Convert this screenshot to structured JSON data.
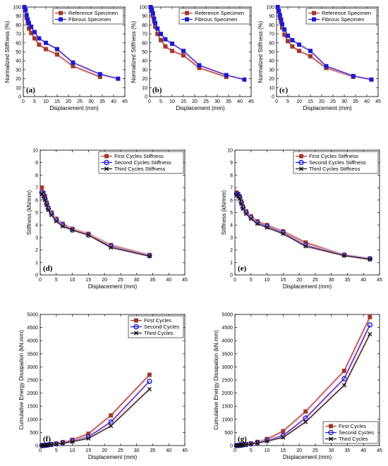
{
  "colors": {
    "reference": "#a0392a",
    "fibrous": "#1a1ad6",
    "first": "#a0392a",
    "second": "#1a1ad6",
    "third": "#111111",
    "halo": "#f5b8c4"
  },
  "chart_data": [
    {
      "id": "a",
      "type": "line",
      "panel_label": "(a)",
      "xlabel": "Displacement (mm)",
      "ylabel": "Normalized Stiffness (%)",
      "xlim": [
        0,
        45
      ],
      "ylim": [
        0,
        100
      ],
      "xticks": [
        0,
        5,
        10,
        15,
        20,
        25,
        30,
        35,
        40,
        45
      ],
      "yticks": [
        0,
        10,
        20,
        30,
        40,
        50,
        60,
        70,
        80,
        90,
        100
      ],
      "legend_position": "top-right",
      "series": [
        {
          "name": "Reference Specimen",
          "color_key": "reference",
          "marker": "square",
          "x": [
            0.5,
            1,
            1.5,
            2,
            2.5,
            3.5,
            5,
            7,
            10,
            15,
            22,
            34
          ],
          "y": [
            100,
            96,
            88,
            82,
            76,
            71,
            65,
            58,
            53,
            47,
            34,
            22
          ]
        },
        {
          "name": "Fibrous Specimen",
          "color_key": "fibrous",
          "marker": "square",
          "x": [
            0.5,
            1,
            1.5,
            2,
            2.5,
            3.5,
            5,
            7,
            10,
            15,
            22,
            34,
            42
          ],
          "y": [
            100,
            97,
            91,
            86,
            82,
            78,
            72,
            65,
            60,
            53,
            38,
            25,
            20
          ]
        }
      ]
    },
    {
      "id": "b",
      "type": "line",
      "panel_label": "(b)",
      "xlabel": "Displacement (mm)",
      "ylabel": "Normalized Stiffness (%)",
      "xlim": [
        0,
        45
      ],
      "ylim": [
        0,
        100
      ],
      "xticks": [
        0,
        5,
        10,
        15,
        20,
        25,
        30,
        35,
        40,
        45
      ],
      "yticks": [
        0,
        10,
        20,
        30,
        40,
        50,
        60,
        70,
        80,
        90,
        100
      ],
      "legend_position": "top-right",
      "series": [
        {
          "name": "Reference Specimen",
          "color_key": "reference",
          "marker": "square",
          "x": [
            0.5,
            1,
            1.5,
            2,
            2.5,
            3.5,
            5,
            7,
            10,
            15,
            22,
            34
          ],
          "y": [
            100,
            96,
            90,
            84,
            78,
            70,
            63,
            56,
            51,
            46,
            32,
            22
          ]
        },
        {
          "name": "Fibrous Specimen",
          "color_key": "fibrous",
          "marker": "square",
          "x": [
            0.5,
            1,
            1.5,
            2,
            2.5,
            3.5,
            5,
            7,
            10,
            15,
            22,
            34,
            42
          ],
          "y": [
            100,
            97,
            93,
            87,
            82,
            76,
            70,
            64,
            59,
            51,
            35,
            24,
            19
          ]
        }
      ]
    },
    {
      "id": "c",
      "type": "line",
      "panel_label": "(c)",
      "xlabel": "Displacement (mm)",
      "ylabel": "Normalized Stiffness (%)",
      "xlim": [
        0,
        45
      ],
      "ylim": [
        0,
        100
      ],
      "xticks": [
        0,
        5,
        10,
        15,
        20,
        25,
        30,
        35,
        40,
        45
      ],
      "yticks": [
        0,
        10,
        20,
        30,
        40,
        50,
        60,
        70,
        80,
        90,
        100
      ],
      "legend_position": "top-right",
      "series": [
        {
          "name": "Reference Specimen",
          "color_key": "reference",
          "marker": "square",
          "x": [
            0.5,
            1,
            1.5,
            2,
            2.5,
            3.5,
            5,
            7,
            10,
            15,
            22,
            34
          ],
          "y": [
            100,
            95,
            88,
            83,
            77,
            69,
            62,
            56,
            51,
            45,
            32,
            22
          ]
        },
        {
          "name": "Fibrous Specimen",
          "color_key": "fibrous",
          "marker": "square",
          "x": [
            0.5,
            1,
            1.5,
            2,
            2.5,
            3.5,
            5,
            7,
            10,
            15,
            22,
            34,
            42
          ],
          "y": [
            100,
            96,
            91,
            86,
            81,
            75,
            68,
            63,
            58,
            51,
            34,
            23,
            19
          ]
        }
      ]
    },
    {
      "id": "d",
      "type": "line",
      "panel_label": "(d)",
      "xlabel": "Displacement (mm)",
      "ylabel": "Stiffness (kN/mm)",
      "xlim": [
        0,
        45
      ],
      "ylim": [
        0,
        10
      ],
      "xticks": [
        0,
        5,
        10,
        15,
        20,
        25,
        30,
        35,
        40,
        45
      ],
      "yticks": [
        0,
        1,
        2,
        3,
        4,
        5,
        6,
        7,
        8,
        9,
        10
      ],
      "legend_position": "top-right",
      "series": [
        {
          "name": "First Cycles Stiffness",
          "color_key": "first",
          "marker": "square",
          "x": [
            0.5,
            1,
            1.5,
            2,
            2.5,
            3.5,
            5,
            7,
            10,
            15,
            22,
            34
          ],
          "y": [
            7.0,
            6.6,
            6.3,
            5.8,
            5.4,
            5.0,
            4.5,
            4.1,
            3.7,
            3.3,
            2.4,
            1.6
          ]
        },
        {
          "name": "Second Cycles Stiffness",
          "color_key": "second",
          "marker": "circle",
          "x": [
            0.5,
            1,
            1.5,
            2,
            2.5,
            3.5,
            5,
            7,
            10,
            15,
            22,
            34
          ],
          "y": [
            6.6,
            6.4,
            6.1,
            5.7,
            5.3,
            4.9,
            4.4,
            4.0,
            3.6,
            3.2,
            2.3,
            1.55
          ]
        },
        {
          "name": "Third Cycles Stiffness",
          "color_key": "third",
          "marker": "x",
          "x": [
            0.5,
            1,
            1.5,
            2,
            2.5,
            3.5,
            5,
            7,
            10,
            15,
            22,
            34
          ],
          "y": [
            6.5,
            6.3,
            6.0,
            5.6,
            5.2,
            4.8,
            4.3,
            3.9,
            3.6,
            3.2,
            2.2,
            1.5
          ]
        }
      ]
    },
    {
      "id": "e",
      "type": "line",
      "panel_label": "(e)",
      "xlabel": "Displacement (mm)",
      "ylabel": "Stiffness (kN/mm)",
      "xlim": [
        0,
        45
      ],
      "ylim": [
        0,
        10
      ],
      "xticks": [
        0,
        5,
        10,
        15,
        20,
        25,
        30,
        35,
        40,
        45
      ],
      "yticks": [
        0,
        1,
        2,
        3,
        4,
        5,
        6,
        7,
        8,
        9,
        10
      ],
      "legend_position": "top-right",
      "series": [
        {
          "name": "First Cycles Stiffness",
          "color_key": "first",
          "marker": "square",
          "x": [
            0.5,
            1,
            1.5,
            2,
            2.5,
            3.5,
            5,
            7,
            10,
            15,
            22,
            34,
            42
          ],
          "y": [
            6.6,
            6.5,
            6.3,
            5.9,
            5.5,
            5.1,
            4.7,
            4.3,
            4.0,
            3.5,
            2.6,
            1.6,
            1.3
          ]
        },
        {
          "name": "Second Cycles Stiffness",
          "color_key": "second",
          "marker": "circle",
          "x": [
            0.5,
            1,
            1.5,
            2,
            2.5,
            3.5,
            5,
            7,
            10,
            15,
            22,
            34,
            42
          ],
          "y": [
            6.5,
            6.4,
            6.2,
            5.8,
            5.4,
            5.0,
            4.6,
            4.2,
            3.9,
            3.4,
            2.4,
            1.6,
            1.3
          ]
        },
        {
          "name": "Third Cycles Stiffness",
          "color_key": "third",
          "marker": "x",
          "x": [
            0.5,
            1,
            1.5,
            2,
            2.5,
            3.5,
            5,
            7,
            10,
            15,
            22,
            34,
            42
          ],
          "y": [
            6.4,
            6.3,
            6.1,
            5.7,
            5.3,
            4.9,
            4.5,
            4.1,
            3.8,
            3.3,
            2.3,
            1.55,
            1.25
          ]
        }
      ]
    },
    {
      "id": "f",
      "type": "line",
      "panel_label": "(f)",
      "xlabel": "Displacement (mm)",
      "ylabel": "Cumulative Energy Dissipation (kN.mm)",
      "xlim": [
        0,
        45
      ],
      "ylim": [
        0,
        5000
      ],
      "xticks": [
        0,
        5,
        10,
        15,
        20,
        25,
        30,
        35,
        40,
        45
      ],
      "yticks": [
        0,
        500,
        1000,
        1500,
        2000,
        2500,
        3000,
        3500,
        4000,
        4500,
        5000
      ],
      "legend_position": "top-right",
      "series": [
        {
          "name": "First Cycles",
          "color_key": "first",
          "marker": "square",
          "x": [
            0.5,
            1,
            1.5,
            2,
            2.5,
            3.5,
            5,
            7,
            10,
            15,
            22,
            34
          ],
          "y": [
            0,
            5,
            10,
            20,
            30,
            50,
            80,
            130,
            220,
            450,
            1150,
            2700
          ]
        },
        {
          "name": "Second Cycles",
          "color_key": "second",
          "marker": "circle",
          "x": [
            0.5,
            1,
            1.5,
            2,
            2.5,
            3.5,
            5,
            7,
            10,
            15,
            22,
            34
          ],
          "y": [
            0,
            4,
            8,
            15,
            25,
            40,
            65,
            105,
            180,
            330,
            900,
            2450
          ]
        },
        {
          "name": "Third Cycles",
          "color_key": "third",
          "marker": "x",
          "x": [
            0.5,
            1,
            1.5,
            2,
            2.5,
            3.5,
            5,
            7,
            10,
            15,
            22,
            34
          ],
          "y": [
            0,
            3,
            6,
            12,
            20,
            35,
            55,
            90,
            150,
            270,
            750,
            2150
          ]
        }
      ]
    },
    {
      "id": "g",
      "type": "line",
      "panel_label": "(g)",
      "xlabel": "Displacement (mm)",
      "ylabel": "Cumulative Energy Dissipation (kN.mm)",
      "xlim": [
        0,
        45
      ],
      "ylim": [
        0,
        5000
      ],
      "xticks": [
        0,
        5,
        10,
        15,
        20,
        25,
        30,
        35,
        40,
        45
      ],
      "yticks": [
        0,
        500,
        1000,
        1500,
        2000,
        2500,
        3000,
        3500,
        4000,
        4500,
        5000
      ],
      "legend_position": "bottom-right",
      "series": [
        {
          "name": "First Cycles",
          "color_key": "first",
          "marker": "square",
          "x": [
            0.5,
            1,
            1.5,
            2,
            2.5,
            3.5,
            5,
            7,
            10,
            15,
            22,
            34,
            42
          ],
          "y": [
            0,
            5,
            10,
            20,
            30,
            50,
            80,
            140,
            250,
            550,
            1300,
            2850,
            4900
          ]
        },
        {
          "name": "Second Cycles",
          "color_key": "second",
          "marker": "circle",
          "x": [
            0.5,
            1,
            1.5,
            2,
            2.5,
            3.5,
            5,
            7,
            10,
            15,
            22,
            34,
            42
          ],
          "y": [
            0,
            4,
            8,
            15,
            25,
            40,
            65,
            110,
            200,
            380,
            1050,
            2550,
            4600
          ]
        },
        {
          "name": "Third Cycles",
          "color_key": "third",
          "marker": "x",
          "x": [
            0.5,
            1,
            1.5,
            2,
            2.5,
            3.5,
            5,
            7,
            10,
            15,
            22,
            34,
            42
          ],
          "y": [
            0,
            3,
            6,
            12,
            20,
            35,
            55,
            95,
            170,
            310,
            900,
            2300,
            4250
          ]
        }
      ]
    }
  ]
}
